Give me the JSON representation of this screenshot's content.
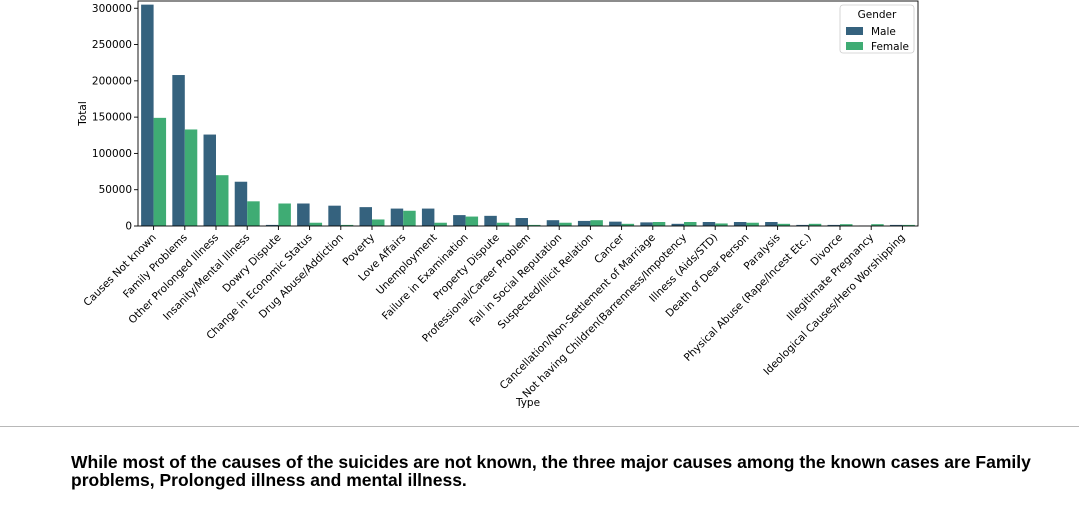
{
  "chart_data": {
    "type": "bar",
    "xlabel": "Type",
    "ylabel": "Total",
    "ylim": [
      0,
      310000
    ],
    "yticks": [
      0,
      50000,
      100000,
      150000,
      200000,
      250000,
      300000
    ],
    "ytick_labels": [
      "0",
      "50000",
      "100000",
      "150000",
      "200000",
      "250000",
      "300000"
    ],
    "grid": false,
    "legend": {
      "title": "Gender",
      "position": "top-right"
    },
    "categories": [
      "Causes Not known",
      "Family Problems",
      "Other Prolonged Illness",
      "Insanity/Mental Illness",
      "Dowry Dispute",
      "Change in Economic Status",
      "Drug Abuse/Addiction",
      "Poverty",
      "Love Affairs",
      "Unemployment",
      "Failure in Examination",
      "Property Dispute",
      "Professional/Career Problem",
      "Fall in Social Reputation",
      "Suspected/Illicit Relation",
      "Cancer",
      "Cancellation/Non-Settlement of Marriage",
      "Not having Children(Barrenness/Impotency",
      "Illness (Aids/STD)",
      "Death of Dear Person",
      "Paralysis",
      "Physical Abuse (Rape/Incest Etc.)",
      "Divorce",
      "Illegitimate Pregnancy",
      "Ideological Causes/Hero Worshipping"
    ],
    "series": [
      {
        "name": "Male",
        "color": "#35627e",
        "values": [
          305000,
          208000,
          126000,
          61000,
          1500,
          31000,
          28000,
          26000,
          24000,
          24000,
          15000,
          14000,
          11000,
          8000,
          7000,
          6000,
          5000,
          3000,
          5500,
          5500,
          5500,
          1500,
          1500,
          500,
          1500
        ]
      },
      {
        "name": "Female",
        "color": "#3fac74",
        "values": [
          149000,
          133000,
          70000,
          34000,
          31000,
          4500,
          1500,
          9000,
          21000,
          4500,
          13000,
          4500,
          1500,
          4500,
          8000,
          3000,
          5500,
          5500,
          3500,
          4500,
          3000,
          3000,
          2500,
          2500,
          1500
        ]
      }
    ]
  },
  "caption": {
    "line1": "While most of the causes of the suicides are not known, the three major causes among the known cases are Family",
    "line2": "problems, Prolonged illness and mental illness."
  }
}
